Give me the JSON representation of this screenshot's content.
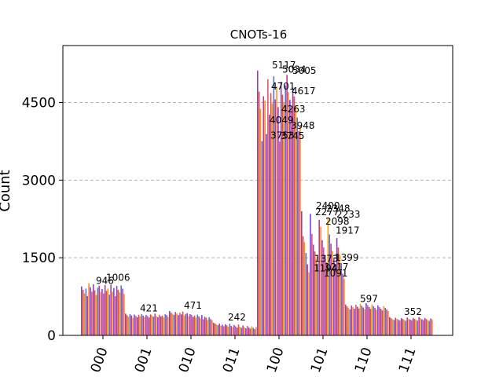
{
  "chart_data": {
    "type": "bar",
    "title": "CNOTs-16",
    "xlabel": "",
    "ylabel": "Count",
    "ylim": [
      0,
      5600
    ],
    "yticks": [
      0,
      1500,
      3000,
      4500
    ],
    "grid": "y-dashed",
    "categories": [
      "000",
      "001",
      "010",
      "011",
      "100",
      "101",
      "110",
      "111"
    ],
    "series_colors": [
      "#8e44ad",
      "#e74c3c",
      "#f39c12",
      "#5b6fd6",
      "#c0399a",
      "#ff8c1a",
      "#7d3cff",
      "#e8556a"
    ],
    "groups": [
      {
        "category": "000",
        "values": [
          946,
          880,
          812,
          905,
          760,
          1006,
          930,
          845,
          990,
          870,
          780,
          920,
          958,
          840,
          896,
          810,
          972,
          860,
          905,
          788,
          980,
          842,
          915,
          760,
          956,
          880,
          830,
          966,
          902,
          798
        ]
      },
      {
        "category": "001",
        "values": [
          421,
          390,
          360,
          410,
          385,
          340,
          402,
          375,
          350,
          398,
          366,
          412,
          380,
          355,
          395,
          371,
          344,
          405,
          388,
          360,
          420,
          374,
          352,
          399,
          365,
          381,
          347,
          408,
          392,
          358
        ]
      },
      {
        "category": "010",
        "values": [
          471,
          440,
          414,
          398,
          452,
          420,
          390,
          436,
          405,
          460,
          385,
          414,
          430,
          372,
          410,
          398,
          355,
          380,
          342,
          402,
          368,
          330,
          392,
          312,
          360,
          340,
          298,
          352,
          315,
          290
        ]
      },
      {
        "category": "011",
        "values": [
          242,
          228,
          210,
          196,
          230,
          188,
          205,
          176,
          215,
          192,
          170,
          224,
          182,
          160,
          200,
          175,
          150,
          210,
          168,
          145,
          190,
          158,
          138,
          182,
          152,
          130,
          176,
          148,
          122,
          162
        ]
      },
      {
        "category": "100",
        "values": [
          5117,
          4710,
          4380,
          3753,
          4620,
          4540,
          3890,
          4950,
          4263,
          4682,
          4480,
          5005,
          4560,
          4810,
          4410,
          3745,
          4900,
          4650,
          4490,
          4830,
          5034,
          4701,
          4550,
          4380,
          4790,
          4617,
          4440,
          4210,
          3948,
          4049
        ]
      },
      {
        "category": "101",
        "values": [
          2400,
          1917,
          1800,
          1592,
          1373,
          1217,
          2348,
          1960,
          1754,
          1620,
          1480,
          1390,
          2233,
          2098,
          1840,
          1702,
          1555,
          1410,
          2277,
          1950,
          1772,
          1630,
          1499,
          1304,
          1880,
          1699,
          1565,
          1399,
          1194,
          1091
        ]
      },
      {
        "category": "110",
        "values": [
          597,
          560,
          530,
          502,
          575,
          545,
          515,
          590,
          555,
          520,
          610,
          572,
          540,
          505,
          622,
          585,
          548,
          512,
          598,
          562,
          530,
          496,
          580,
          546,
          515,
          482,
          566,
          532,
          500,
          470
        ]
      },
      {
        "category": "111",
        "values": [
          352,
          330,
          312,
          298,
          340,
          318,
          300,
          286,
          334,
          316,
          298,
          282,
          345,
          322,
          305,
          290,
          338,
          318,
          300,
          284,
          352,
          328,
          310,
          294,
          336,
          314,
          296,
          280,
          326,
          308
        ]
      }
    ],
    "data_labels": [
      {
        "category": "000",
        "text": "946",
        "value": 946
      },
      {
        "category": "000",
        "text": "1006",
        "value": 1006
      },
      {
        "category": "100",
        "text": "5117",
        "value": 5117
      },
      {
        "category": "100",
        "text": "5034",
        "value": 5034
      },
      {
        "category": "100",
        "text": "5005",
        "value": 5005
      },
      {
        "category": "100",
        "text": "4701",
        "value": 4701
      },
      {
        "category": "100",
        "text": "4263",
        "value": 4263
      },
      {
        "category": "100",
        "text": "4617",
        "value": 4617
      },
      {
        "category": "100",
        "text": "3753",
        "value": 3753
      },
      {
        "category": "100",
        "text": "3745",
        "value": 3745
      },
      {
        "category": "100",
        "text": "3948",
        "value": 3948
      },
      {
        "category": "100",
        "text": "4049",
        "value": 4049
      },
      {
        "category": "101",
        "text": "2400",
        "value": 2400
      },
      {
        "category": "101",
        "text": "2348",
        "value": 2348
      },
      {
        "category": "101",
        "text": "2233",
        "value": 2233
      },
      {
        "category": "101",
        "text": "2277",
        "value": 2277
      },
      {
        "category": "101",
        "text": "2098",
        "value": 2098
      },
      {
        "category": "101",
        "text": "1917",
        "value": 1917
      },
      {
        "category": "101",
        "text": "1373",
        "value": 1373
      },
      {
        "category": "101",
        "text": "1217",
        "value": 1217
      },
      {
        "category": "101",
        "text": "1399",
        "value": 1399
      },
      {
        "category": "101",
        "text": "1194",
        "value": 1194
      },
      {
        "category": "101",
        "text": "1091",
        "value": 1091
      },
      {
        "category": "001",
        "text": "421",
        "value": 421
      },
      {
        "category": "010",
        "text": "471",
        "value": 471
      },
      {
        "category": "011",
        "text": "242",
        "value": 242
      },
      {
        "category": "110",
        "text": "597",
        "value": 597
      },
      {
        "category": "111",
        "text": "352",
        "value": 352
      }
    ]
  }
}
